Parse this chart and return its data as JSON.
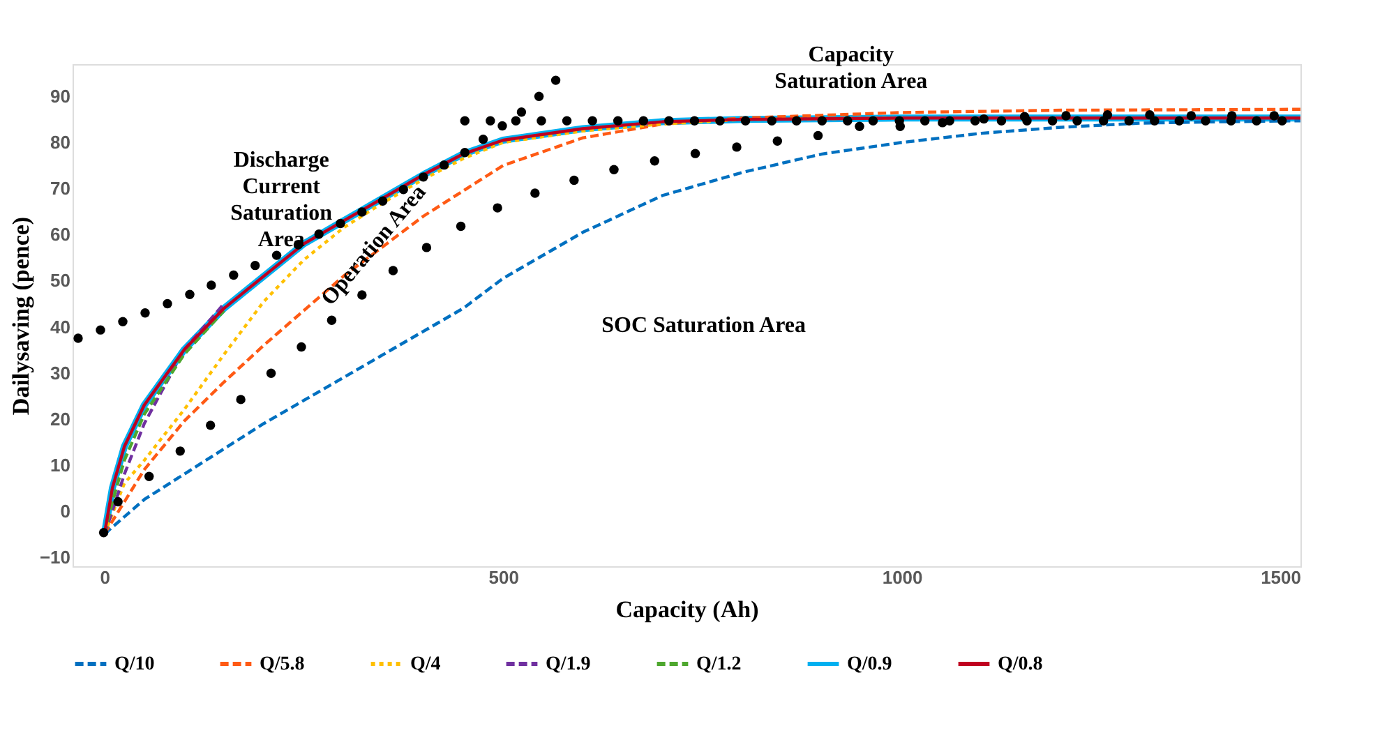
{
  "chart_data": {
    "type": "line",
    "xlabel": "Capacity (Ah)",
    "ylabel": "Dailysaving (pence)",
    "xlim": [
      -40,
      1500
    ],
    "xticks": [
      0,
      500,
      {
        "value": 1000,
        "label": "1000"
      },
      {
        "value": 1500,
        "label": "1500"
      }
    ],
    "ylim": [
      -12,
      97
    ],
    "yticks": [
      -10,
      0,
      10,
      20,
      30,
      40,
      50,
      60,
      70,
      80,
      90
    ],
    "grid": false,
    "legend": "bottom",
    "marker": "none",
    "series": [
      {
        "name": "Q/10",
        "color": "#0070c0",
        "line_style": "dashed",
        "x": [
          0,
          50,
          100,
          150,
          200,
          250,
          300,
          350,
          400,
          450,
          500,
          600,
          700,
          800,
          900,
          1000,
          1100,
          1200,
          1300,
          1400,
          1500
        ],
        "values": [
          -5,
          2.5,
          8,
          13.5,
          19,
          24,
          29,
          34,
          39,
          44,
          50.5,
          60.5,
          68.5,
          73.5,
          77.5,
          80,
          82,
          83.3,
          84.2,
          84.5,
          84.7
        ]
      },
      {
        "name": "Q/5.8",
        "color": "#ff5a14",
        "line_style": "dashed",
        "x": [
          0,
          50,
          100,
          150,
          200,
          250,
          300,
          350,
          400,
          450,
          500,
          600,
          700,
          800,
          1000,
          1200,
          1500
        ],
        "values": [
          -5,
          9,
          19.5,
          28,
          36,
          43.5,
          51,
          57.5,
          64,
          69.5,
          75,
          81,
          84,
          85.3,
          86.5,
          87,
          87.2
        ]
      },
      {
        "name": "Q/4",
        "color": "#ffc000",
        "line_style": "dotted",
        "x": [
          0,
          25,
          50,
          100,
          150,
          200,
          250,
          300,
          350,
          400,
          450,
          500,
          600,
          700,
          800,
          1000
        ],
        "values": [
          -5,
          6,
          11,
          22,
          34,
          45.5,
          54.5,
          61.5,
          67,
          72,
          76.5,
          80,
          82.5,
          84,
          85,
          85.3
        ]
      },
      {
        "name": "Q/1.9",
        "color": "#7030a0",
        "line_style": "dashed",
        "x": [
          0,
          10,
          25,
          50,
          100,
          150
        ],
        "values": [
          -5,
          0,
          8,
          19,
          35,
          45
        ]
      },
      {
        "name": "Q/1.2",
        "color": "#4ea72e",
        "line_style": "dashed",
        "x": [
          0,
          10,
          25,
          50,
          100,
          150
        ],
        "values": [
          -5,
          2,
          11,
          21,
          34,
          43.5
        ]
      },
      {
        "name": "Q/0.9",
        "color": "#00b0f0",
        "line_style": "solid",
        "x": [
          0,
          10,
          25,
          50,
          100,
          150,
          200,
          250,
          300,
          350,
          400,
          450,
          500,
          600,
          700,
          800,
          1000,
          1200,
          1500
        ],
        "values": [
          -5,
          5,
          14,
          23,
          35,
          44,
          51,
          58,
          63,
          68,
          73,
          77.5,
          80.5,
          83,
          84.5,
          85,
          85.3,
          85.3,
          85.3
        ]
      },
      {
        "name": "Q/0.8",
        "color": "#c00020",
        "line_style": "solid",
        "x": [
          0,
          10,
          25,
          50,
          100,
          150,
          200,
          250,
          300,
          350,
          400,
          450,
          500,
          600,
          700,
          800,
          1000,
          1200,
          1500
        ],
        "values": [
          -5,
          5,
          14,
          23,
          35,
          44,
          51,
          58,
          63,
          68,
          73,
          77.5,
          80.5,
          83,
          84.5,
          85,
          85.3,
          85.3,
          85.3
        ]
      },
      {
        "type": "scatter",
        "marker": "circle",
        "color": "#000000",
        "x": [
          -33,
          -5,
          23,
          51,
          79,
          107,
          134,
          162,
          189,
          216,
          243,
          269,
          296,
          323,
          349,
          375,
          400,
          426,
          452,
          452,
          475,
          484,
          499,
          516,
          523,
          545,
          566,
          548,
          580,
          612,
          644,
          676,
          708,
          740,
          772,
          804,
          837,
          868,
          900,
          932,
          964,
          997,
          947,
          998,
          1029,
          1051,
          1060,
          1092,
          1103,
          1125,
          1154,
          1157,
          1189,
          1206,
          1220,
          1253,
          1258,
          1285,
          1311,
          1317,
          1348,
          1363,
          1381,
          1413,
          1414,
          1445,
          1467,
          1477,
          -1,
          17,
          56,
          95,
          133,
          171,
          209,
          247,
          285,
          323,
          362,
          404,
          447,
          493,
          540,
          589,
          639,
          690,
          741,
          793,
          844,
          895
        ],
        "values": [
          37.5,
          39.3,
          41.1,
          43,
          45,
          47,
          49,
          51.2,
          53.3,
          55.5,
          57.8,
          60.1,
          62.4,
          64.9,
          67.3,
          69.8,
          72.5,
          75.1,
          77.8,
          84.7,
          80.7,
          84.7,
          83.6,
          84.7,
          86.6,
          90,
          93.5,
          84.7,
          84.7,
          84.7,
          84.7,
          84.7,
          84.7,
          84.7,
          84.7,
          84.7,
          84.7,
          84.7,
          84.7,
          84.7,
          84.7,
          84.7,
          83.5,
          83.5,
          84.7,
          84.3,
          84.7,
          84.7,
          85.1,
          84.7,
          85.6,
          84.7,
          84.7,
          85.8,
          84.7,
          84.7,
          86,
          84.7,
          86,
          84.7,
          84.7,
          85.8,
          84.7,
          84.7,
          85.8,
          84.7,
          85.8,
          84.7,
          -4.7,
          2,
          7.5,
          13,
          18.6,
          24.2,
          29.9,
          35.6,
          41.4,
          46.9,
          52.2,
          57.2,
          61.8,
          65.8,
          69,
          71.8,
          74.1,
          76,
          77.6,
          79,
          80.3,
          81.5
        ]
      }
    ],
    "annotations": [
      "Discharge\nCurrent\nSaturation\nArea",
      "Operation Area",
      "Capacity\nSaturation Area",
      "SOC Saturation Area"
    ]
  }
}
